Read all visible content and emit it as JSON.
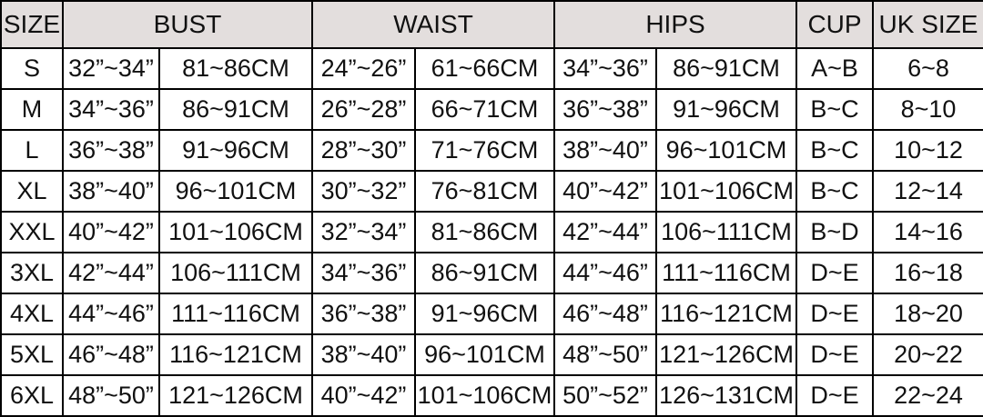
{
  "chart_data": {
    "type": "table",
    "styles": {
      "header_bg": "#e3dedd",
      "border_color": "#000000",
      "text_color": "#111111"
    },
    "headers": [
      {
        "label": "SIZE",
        "colspan": 1
      },
      {
        "label": "BUST",
        "colspan": 2
      },
      {
        "label": "WAIST",
        "colspan": 2
      },
      {
        "label": "HIPS",
        "colspan": 2
      },
      {
        "label": "CUP",
        "colspan": 1
      },
      {
        "label": "UK SIZE",
        "colspan": 1
      }
    ],
    "rows": [
      [
        "S",
        "32”~34”",
        "81~86CM",
        "24”~26”",
        "61~66CM",
        "34”~36”",
        "86~91CM",
        "A~B",
        "6~8"
      ],
      [
        "M",
        "34”~36”",
        "86~91CM",
        "26”~28”",
        "66~71CM",
        "36”~38”",
        "91~96CM",
        "B~C",
        "8~10"
      ],
      [
        "L",
        "36”~38”",
        "91~96CM",
        "28”~30”",
        "71~76CM",
        "38”~40”",
        "96~101CM",
        "B~C",
        "10~12"
      ],
      [
        "XL",
        "38”~40”",
        "96~101CM",
        "30”~32”",
        "76~81CM",
        "40”~42”",
        "101~106CM",
        "B~C",
        "12~14"
      ],
      [
        "XXL",
        "40”~42”",
        "101~106CM",
        "32”~34”",
        "81~86CM",
        "42”~44”",
        "106~111CM",
        "B~D",
        "14~16"
      ],
      [
        "3XL",
        "42”~44”",
        "106~111CM",
        "34”~36”",
        "86~91CM",
        "44”~46”",
        "111~116CM",
        "D~E",
        "16~18"
      ],
      [
        "4XL",
        "44”~46”",
        "111~116CM",
        "36”~38”",
        "91~96CM",
        "46”~48”",
        "116~121CM",
        "D~E",
        "18~20"
      ],
      [
        "5XL",
        "46”~48”",
        "116~121CM",
        "38”~40”",
        "96~101CM",
        "48”~50”",
        "121~126CM",
        "D~E",
        "20~22"
      ],
      [
        "6XL",
        "48”~50”",
        "121~126CM",
        "40”~42”",
        "101~106CM",
        "50”~52”",
        "126~131CM",
        "D~E",
        "22~24"
      ]
    ]
  }
}
